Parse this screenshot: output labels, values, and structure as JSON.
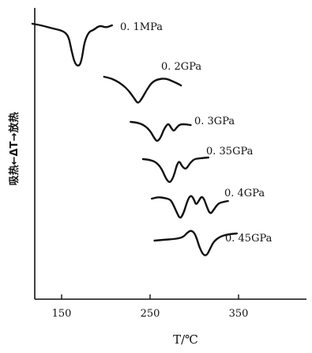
{
  "chart_data": {
    "type": "line",
    "xlabel": "T/℃",
    "ylabel": "吸热←ΔT→放热",
    "x_ticks": [
      150,
      250,
      350
    ],
    "xlim": [
      120,
      390
    ],
    "grid": false,
    "series": [
      {
        "name": "0. 1MPa",
        "points": [
          [
            117,
            8
          ],
          [
            127,
            6
          ],
          [
            140,
            2
          ],
          [
            152,
            -1
          ],
          [
            158,
            -8
          ],
          [
            161,
            -25
          ],
          [
            165,
            -43
          ],
          [
            170,
            -46
          ],
          [
            173,
            -36
          ],
          [
            176,
            -14
          ],
          [
            181,
            -2
          ],
          [
            186,
            0
          ],
          [
            193,
            6
          ],
          [
            200,
            3
          ],
          [
            207,
            6
          ]
        ]
      },
      {
        "name": "0. 2GPa",
        "points": [
          [
            198,
            11
          ],
          [
            206,
            9
          ],
          [
            215,
            4
          ],
          [
            224,
            -4
          ],
          [
            232,
            -16
          ],
          [
            236,
            -23
          ],
          [
            240,
            -18
          ],
          [
            246,
            -6
          ],
          [
            252,
            4
          ],
          [
            259,
            8
          ],
          [
            268,
            9
          ],
          [
            276,
            5
          ],
          [
            282,
            2
          ],
          [
            285,
            0
          ]
        ]
      },
      {
        "name": "0. 3GPa",
        "points": [
          [
            228,
            6
          ],
          [
            236,
            5
          ],
          [
            243,
            2
          ],
          [
            250,
            -5
          ],
          [
            255,
            -15
          ],
          [
            258,
            -19
          ],
          [
            262,
            -14
          ],
          [
            265,
            -5
          ],
          [
            268,
            1
          ],
          [
            271,
            4
          ],
          [
            274,
            -2
          ],
          [
            277,
            -6
          ],
          [
            280,
            -1
          ],
          [
            284,
            3
          ],
          [
            290,
            3
          ],
          [
            296,
            2
          ]
        ]
      },
      {
        "name": "0. 35GPa",
        "points": [
          [
            242,
            4
          ],
          [
            250,
            3
          ],
          [
            257,
            0
          ],
          [
            263,
            -8
          ],
          [
            268,
            -21
          ],
          [
            272,
            -26
          ],
          [
            275,
            -22
          ],
          [
            278,
            -13
          ],
          [
            280,
            -4
          ],
          [
            283,
            2
          ],
          [
            286,
            -5
          ],
          [
            290,
            -9
          ],
          [
            293,
            -5
          ],
          [
            296,
            0
          ],
          [
            300,
            4
          ],
          [
            306,
            5
          ],
          [
            316,
            6
          ]
        ]
      },
      {
        "name": "0. 4GPa",
        "points": [
          [
            252,
            4
          ],
          [
            259,
            6
          ],
          [
            266,
            5
          ],
          [
            273,
            3
          ],
          [
            276,
            -3
          ],
          [
            280,
            -13
          ],
          [
            284,
            -22
          ],
          [
            288,
            -14
          ],
          [
            291,
            -3
          ],
          [
            294,
            6
          ],
          [
            297,
            8
          ],
          [
            300,
            2
          ],
          [
            302,
            -4
          ],
          [
            305,
            1
          ],
          [
            308,
            7
          ],
          [
            311,
            4
          ],
          [
            314,
            -6
          ],
          [
            318,
            -16
          ],
          [
            322,
            -10
          ],
          [
            327,
            -2
          ],
          [
            333,
            0
          ],
          [
            338,
            1
          ]
        ]
      },
      {
        "name": "0. 45GPa",
        "points": [
          [
            255,
            1
          ],
          [
            265,
            2
          ],
          [
            277,
            3
          ],
          [
            283,
            4
          ],
          [
            288,
            6
          ],
          [
            292,
            11
          ],
          [
            296,
            14
          ],
          [
            300,
            11
          ],
          [
            303,
            3
          ],
          [
            306,
            -8
          ],
          [
            310,
            -17
          ],
          [
            314,
            -18
          ],
          [
            318,
            -9
          ],
          [
            322,
            0
          ],
          [
            329,
            6
          ],
          [
            338,
            9
          ],
          [
            348,
            10
          ]
        ]
      }
    ]
  }
}
